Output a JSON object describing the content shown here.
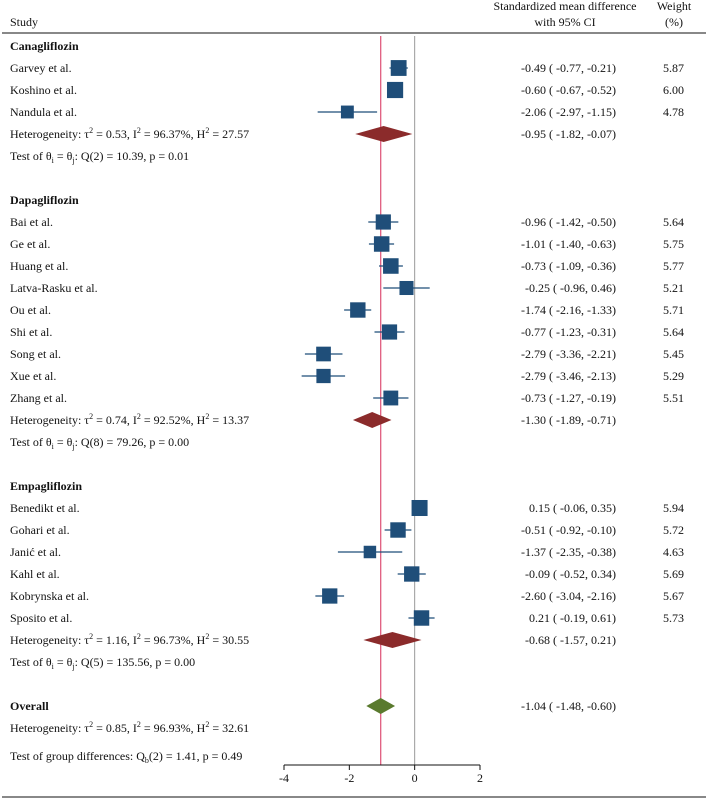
{
  "chart_data": {
    "type": "forest",
    "columns": {
      "study": "Study",
      "effect_line1": "Standardized mean difference",
      "effect_line2": "with 95% CI",
      "weight_line1": "Weight",
      "weight_line2": "(%)"
    },
    "x_axis": {
      "min": -4,
      "max": 2,
      "ticks": [
        "-4",
        "-2",
        "0",
        "2"
      ]
    },
    "overall_effect": -1.04,
    "colors": {
      "square": "#1f4e79",
      "subgroup_diamond": "#8b2b2b",
      "overall_diamond": "#5a7a2e",
      "overall_line": "#e05c7f",
      "null_line": "#999999"
    },
    "groups": [
      {
        "name": "Canagliflozin",
        "studies": [
          {
            "label": "Garvey et al.",
            "est": -0.49,
            "lo": -0.77,
            "hi": -0.21,
            "ci_text": "-0.49 ( -0.77, -0.21)",
            "weight": "5.87"
          },
          {
            "label": "Koshino et al.",
            "est": -0.6,
            "lo": -0.67,
            "hi": -0.52,
            "ci_text": "-0.60 ( -0.67, -0.52)",
            "weight": "6.00"
          },
          {
            "label": "Nandula et al.",
            "est": -2.06,
            "lo": -2.97,
            "hi": -1.15,
            "ci_text": "-2.06 ( -2.97, -1.15)",
            "weight": "4.78"
          }
        ],
        "heterogeneity_prefix": "Heterogeneity: τ",
        "heterogeneity_sup1": "2",
        "heterogeneity_mid": " = 0.53, I",
        "heterogeneity_sup2": "2",
        "heterogeneity_mid2": " = 96.37%, H",
        "heterogeneity_sup3": "2",
        "heterogeneity_end": " = 27.57",
        "summary": {
          "est": -0.95,
          "lo": -1.82,
          "hi": -0.07,
          "ci_text": "-0.95 ( -1.82, -0.07)"
        },
        "test_text": "Test of θi = θj: Q(2) = 10.39, p = 0.01"
      },
      {
        "name": "Dapagliflozin",
        "studies": [
          {
            "label": "Bai et al.",
            "est": -0.96,
            "lo": -1.42,
            "hi": -0.5,
            "ci_text": "-0.96 ( -1.42, -0.50)",
            "weight": "5.64"
          },
          {
            "label": "Ge et al.",
            "est": -1.01,
            "lo": -1.4,
            "hi": -0.63,
            "ci_text": "-1.01 ( -1.40, -0.63)",
            "weight": "5.75"
          },
          {
            "label": "Huang et al.",
            "est": -0.73,
            "lo": -1.09,
            "hi": -0.36,
            "ci_text": "-0.73 ( -1.09, -0.36)",
            "weight": "5.77"
          },
          {
            "label": "Latva-Rasku et al.",
            "est": -0.25,
            "lo": -0.96,
            "hi": 0.46,
            "ci_text": "-0.25 ( -0.96,  0.46)",
            "weight": "5.21"
          },
          {
            "label": "Ou et al.",
            "est": -1.74,
            "lo": -2.16,
            "hi": -1.33,
            "ci_text": "-1.74 ( -2.16, -1.33)",
            "weight": "5.71"
          },
          {
            "label": "Shi et al.",
            "est": -0.77,
            "lo": -1.23,
            "hi": -0.31,
            "ci_text": "-0.77 ( -1.23, -0.31)",
            "weight": "5.64"
          },
          {
            "label": "Song et al.",
            "est": -2.79,
            "lo": -3.36,
            "hi": -2.21,
            "ci_text": "-2.79 ( -3.36, -2.21)",
            "weight": "5.45"
          },
          {
            "label": "Xue et al.",
            "est": -2.79,
            "lo": -3.46,
            "hi": -2.13,
            "ci_text": "-2.79 ( -3.46, -2.13)",
            "weight": "5.29"
          },
          {
            "label": "Zhang et al.",
            "est": -0.73,
            "lo": -1.27,
            "hi": -0.19,
            "ci_text": "-0.73 ( -1.27, -0.19)",
            "weight": "5.51"
          }
        ],
        "heterogeneity_prefix": "Heterogeneity: τ",
        "heterogeneity_sup1": "2",
        "heterogeneity_mid": " = 0.74, I",
        "heterogeneity_sup2": "2",
        "heterogeneity_mid2": " = 92.52%, H",
        "heterogeneity_sup3": "2",
        "heterogeneity_end": " = 13.37",
        "summary": {
          "est": -1.3,
          "lo": -1.89,
          "hi": -0.71,
          "ci_text": "-1.30 ( -1.89, -0.71)"
        },
        "test_text": "Test of θi = θj: Q(8) = 79.26, p = 0.00"
      },
      {
        "name": "Empagliflozin",
        "studies": [
          {
            "label": "Benedikt et al.",
            "est": 0.15,
            "lo": -0.06,
            "hi": 0.35,
            "ci_text": " 0.15 ( -0.06,  0.35)",
            "weight": "5.94"
          },
          {
            "label": "Gohari et al.",
            "est": -0.51,
            "lo": -0.92,
            "hi": -0.1,
            "ci_text": "-0.51 ( -0.92, -0.10)",
            "weight": "5.72"
          },
          {
            "label": "Janić et al.",
            "est": -1.37,
            "lo": -2.35,
            "hi": -0.38,
            "ci_text": "-1.37 ( -2.35, -0.38)",
            "weight": "4.63"
          },
          {
            "label": "Kahl et al.",
            "est": -0.09,
            "lo": -0.52,
            "hi": 0.34,
            "ci_text": "-0.09 ( -0.52,  0.34)",
            "weight": "5.69"
          },
          {
            "label": "Kobrynska et al.",
            "est": -2.6,
            "lo": -3.04,
            "hi": -2.16,
            "ci_text": "-2.60 ( -3.04, -2.16)",
            "weight": "5.67"
          },
          {
            "label": "Sposito et al.",
            "est": 0.21,
            "lo": -0.19,
            "hi": 0.61,
            "ci_text": " 0.21 ( -0.19,  0.61)",
            "weight": "5.73"
          }
        ],
        "heterogeneity_prefix": "Heterogeneity: τ",
        "heterogeneity_sup1": "2",
        "heterogeneity_mid": " = 1.16, I",
        "heterogeneity_sup2": "2",
        "heterogeneity_mid2": " = 96.73%, H",
        "heterogeneity_sup3": "2",
        "heterogeneity_end": " = 30.55",
        "summary": {
          "est": -0.68,
          "lo": -1.57,
          "hi": 0.21,
          "ci_text": "-0.68 ( -1.57,  0.21)"
        },
        "test_text": "Test of θi = θj: Q(5) = 135.56, p = 0.00"
      }
    ],
    "overall": {
      "label": "Overall",
      "est": -1.04,
      "lo": -1.48,
      "hi": -0.6,
      "ci_text": "-1.04 ( -1.48, -0.60)",
      "heterogeneity_prefix": "Heterogeneity: τ",
      "heterogeneity_sup1": "2",
      "heterogeneity_mid": " = 0.85, I",
      "heterogeneity_sup2": "2",
      "heterogeneity_mid2": " = 96.93%, H",
      "heterogeneity_sup3": "2",
      "heterogeneity_end": " = 32.61",
      "group_test_text": "Test of group differences: Qb(2) = 1.41, p = 0.49"
    }
  }
}
